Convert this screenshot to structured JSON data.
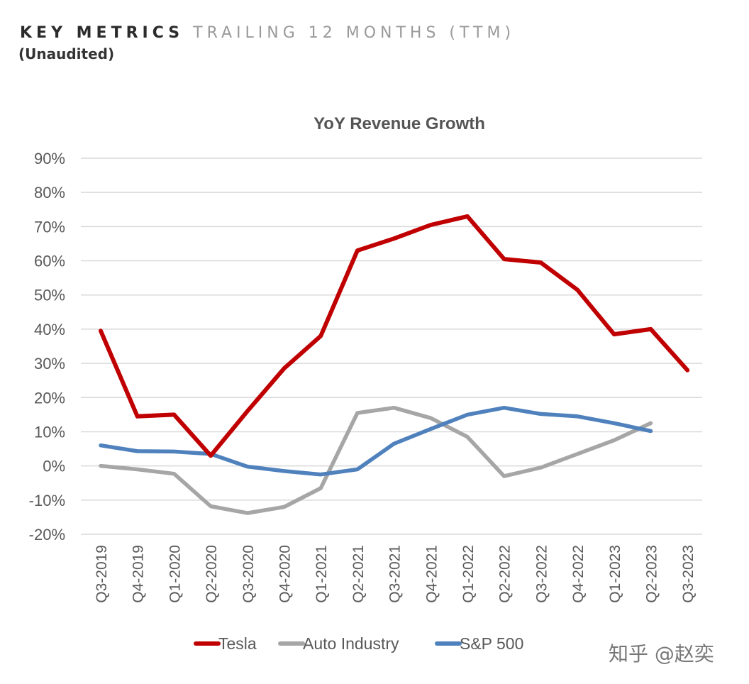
{
  "header": {
    "title_bold": "KEY METRICS",
    "title_light": "TRAILING 12 MONTHS (TTM)",
    "subtitle": "(Unaudited)"
  },
  "chart_data": {
    "type": "line",
    "title": "YoY Revenue Growth",
    "xlabel": "",
    "ylabel": "",
    "ylim": [
      -20,
      90
    ],
    "yticks": [
      90,
      80,
      70,
      60,
      50,
      40,
      30,
      20,
      10,
      0,
      -10,
      -20
    ],
    "ytick_labels": [
      "90%",
      "80%",
      "70%",
      "60%",
      "50%",
      "40%",
      "30%",
      "20%",
      "10%",
      "0%",
      "-10%",
      "-20%"
    ],
    "grid": true,
    "legend_position": "bottom",
    "categories": [
      "Q3-2019",
      "Q4-2019",
      "Q1-2020",
      "Q2-2020",
      "Q3-2020",
      "Q4-2020",
      "Q1-2021",
      "Q2-2021",
      "Q3-2021",
      "Q4-2021",
      "Q1-2022",
      "Q2-2022",
      "Q3-2022",
      "Q4-2022",
      "Q1-2023",
      "Q2-2023",
      "Q3-2023"
    ],
    "series": [
      {
        "name": "Tesla",
        "color": "#c00000",
        "values": [
          39.5,
          14.5,
          15,
          3,
          16,
          28.5,
          38,
          63,
          66.5,
          70.5,
          73,
          60.5,
          59.5,
          51.5,
          38.5,
          40,
          28
        ]
      },
      {
        "name": "Auto Industry",
        "color": "#a6a6a6",
        "values": [
          0,
          -1,
          -2.3,
          -11.8,
          -13.8,
          -12,
          -6.5,
          15.5,
          17,
          14,
          8.5,
          -3,
          -0.5,
          3.5,
          7.5,
          12.5,
          null
        ]
      },
      {
        "name": "S&P 500",
        "color": "#4f81bd",
        "values": [
          6,
          4.3,
          4.2,
          3.5,
          -0.2,
          -1.5,
          -2.5,
          -1,
          6.5,
          10.8,
          15,
          17,
          15.2,
          14.5,
          12.5,
          10.2,
          null
        ]
      }
    ]
  },
  "watermark": "知乎 @赵奕"
}
